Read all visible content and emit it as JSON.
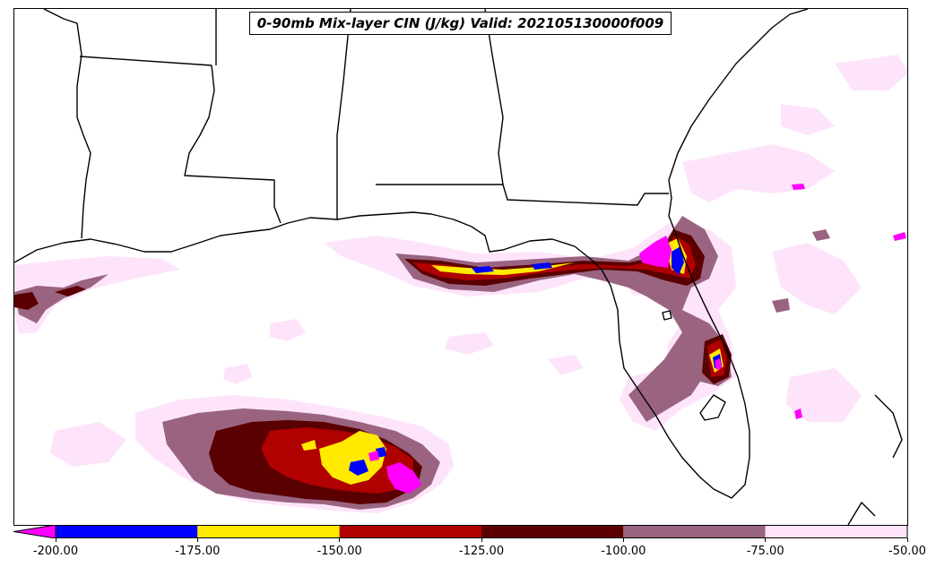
{
  "title": "0-90mb Mix-layer CIN (J/kg) Valid: 202105130000f009",
  "colorbar": {
    "extend": "min",
    "ticks": [
      "-200.00",
      "-175.00",
      "-150.00",
      "-125.00",
      "-100.00",
      "-75.00",
      "-50.00"
    ],
    "levels": [
      -200,
      -175,
      -150,
      -125,
      -100,
      -75,
      -50
    ],
    "under_color": "#ff00ff",
    "colors": [
      "#0000ff",
      "#ffea00",
      "#b00000",
      "#5a0000",
      "#9a6480",
      "#fde4fb"
    ]
  },
  "map": {
    "region": "U.S. Gulf Coast, Gulf of Mexico and Florida",
    "background": "#ffffff",
    "boundary_color": "#000000"
  }
}
